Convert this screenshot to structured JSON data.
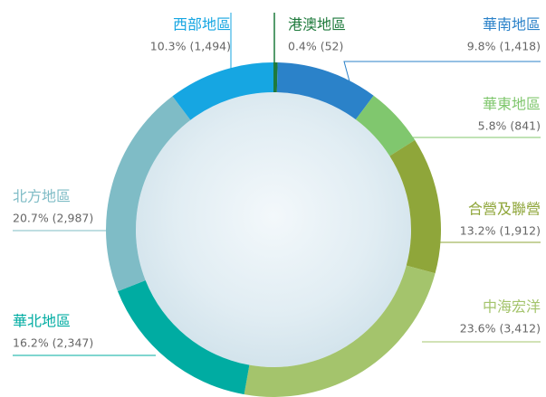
{
  "chart_data": {
    "type": "donut",
    "categories": [
      "港澳地區",
      "華南地區",
      "華東地區",
      "合營及聯營",
      "中海宏洋",
      "華北地區",
      "北方地區",
      "西部地區"
    ],
    "values": [
      0.4,
      9.8,
      5.8,
      13.2,
      23.6,
      16.2,
      20.7,
      10.3
    ],
    "value_labels": [
      "0.4% (52)",
      "9.8% (1,418)",
      "5.8% (841)",
      "13.2% (1,912)",
      "23.6% (3,412)",
      "16.2% (2,347)",
      "20.7% (2,987)",
      "10.3% (1,494)"
    ],
    "colors": [
      "#1e7a3c",
      "#2b82c9",
      "#80c76e",
      "#8fa63a",
      "#a4c46c",
      "#00aca2",
      "#7fbcc6",
      "#16a6e2"
    ]
  }
}
